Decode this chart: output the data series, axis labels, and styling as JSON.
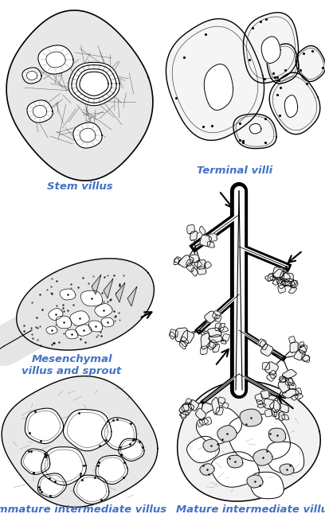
{
  "background_color": "#ffffff",
  "label_color": "#4472c4",
  "label_fontsize": 9.5,
  "labels": {
    "stem_villus": "Stem villus",
    "terminal_villi": "Terminal villi",
    "mesenchymal": "Mesenchymal\nvillus and sprout",
    "immature": "Immature intermediate villus",
    "mature": "Mature intermediate villus"
  },
  "figsize": [
    4.08,
    6.46
  ],
  "dpi": 100
}
